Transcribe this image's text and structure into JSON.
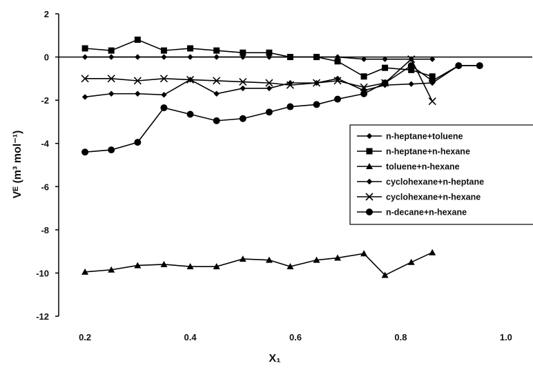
{
  "chart_data": {
    "type": "line",
    "title": "",
    "xlabel": "X₁",
    "ylabel": "Vᴱ (m³ mol⁻¹)",
    "xlim": [
      0.15,
      1.05
    ],
    "ylim": [
      -12,
      2
    ],
    "x_ticks": [
      "0.2",
      "0.4",
      "0.6",
      "0.8",
      "1.0"
    ],
    "y_ticks": [
      "2",
      "0",
      "-2",
      "-4",
      "-6",
      "-8",
      "-10",
      "-12"
    ],
    "grid": false,
    "legend_position": "right",
    "series": [
      {
        "name": "n-heptane+toluene",
        "marker": "diamond",
        "color": "#000000",
        "x": [
          0.2,
          0.25,
          0.3,
          0.35,
          0.4,
          0.45,
          0.5,
          0.55,
          0.59,
          0.64,
          0.68,
          0.73,
          0.77,
          0.82,
          0.86
        ],
        "y": [
          0.0,
          0.0,
          0.0,
          0.0,
          0.0,
          0.0,
          0.0,
          0.0,
          0.0,
          0.0,
          0.0,
          -0.1,
          -0.1,
          -0.1,
          -0.1
        ]
      },
      {
        "name": "n-heptane+n-hexane",
        "marker": "square",
        "color": "#000000",
        "x": [
          0.2,
          0.25,
          0.3,
          0.35,
          0.4,
          0.45,
          0.5,
          0.55,
          0.59,
          0.64,
          0.68,
          0.73,
          0.77,
          0.82,
          0.86
        ],
        "y": [
          0.4,
          0.3,
          0.8,
          0.3,
          0.4,
          0.3,
          0.2,
          0.2,
          0.0,
          0.0,
          -0.2,
          -0.9,
          -0.5,
          -0.6,
          -0.9
        ]
      },
      {
        "name": "toluene+n-hexane",
        "marker": "triangle",
        "color": "#000000",
        "x": [
          0.2,
          0.25,
          0.3,
          0.35,
          0.4,
          0.45,
          0.5,
          0.55,
          0.59,
          0.64,
          0.68,
          0.73,
          0.77,
          0.82,
          0.86
        ],
        "y": [
          -9.95,
          -9.85,
          -9.65,
          -9.6,
          -9.7,
          -9.7,
          -9.35,
          -9.4,
          -9.7,
          -9.4,
          -9.3,
          -9.1,
          -10.1,
          -9.5,
          -9.05
        ]
      },
      {
        "name": "cyclohexane+n-heptane",
        "marker": "diamond",
        "color": "#000000",
        "x": [
          0.2,
          0.25,
          0.3,
          0.35,
          0.4,
          0.45,
          0.5,
          0.55,
          0.59,
          0.64,
          0.68,
          0.73,
          0.77,
          0.82,
          0.86,
          0.91,
          0.95
        ],
        "y": [
          -1.85,
          -1.7,
          -1.7,
          -1.75,
          -1.05,
          -1.7,
          -1.45,
          -1.45,
          -1.2,
          -1.2,
          -1.0,
          -1.55,
          -1.3,
          -1.25,
          -1.2,
          -0.4,
          -0.4
        ]
      },
      {
        "name": "cyclohexane+n-hexane",
        "marker": "x",
        "color": "#000000",
        "x": [
          0.2,
          0.25,
          0.3,
          0.35,
          0.4,
          0.45,
          0.5,
          0.55,
          0.59,
          0.64,
          0.68,
          0.73,
          0.77,
          0.82,
          0.86
        ],
        "y": [
          -1.0,
          -1.0,
          -1.1,
          -1.0,
          -1.05,
          -1.1,
          -1.15,
          -1.2,
          -1.3,
          -1.2,
          -1.1,
          -1.4,
          -1.2,
          -0.1,
          -2.05
        ]
      },
      {
        "name": "n-decane+n-hexane",
        "marker": "circle",
        "color": "#000000",
        "x": [
          0.2,
          0.25,
          0.3,
          0.35,
          0.4,
          0.45,
          0.5,
          0.55,
          0.59,
          0.64,
          0.68,
          0.73,
          0.77,
          0.82,
          0.86,
          0.91,
          0.95
        ],
        "y": [
          -4.4,
          -4.3,
          -3.95,
          -2.35,
          -2.65,
          -2.95,
          -2.85,
          -2.55,
          -2.3,
          -2.2,
          -1.95,
          -1.7,
          -1.2,
          -0.4,
          -1.1,
          -0.4,
          -0.4
        ]
      }
    ]
  }
}
